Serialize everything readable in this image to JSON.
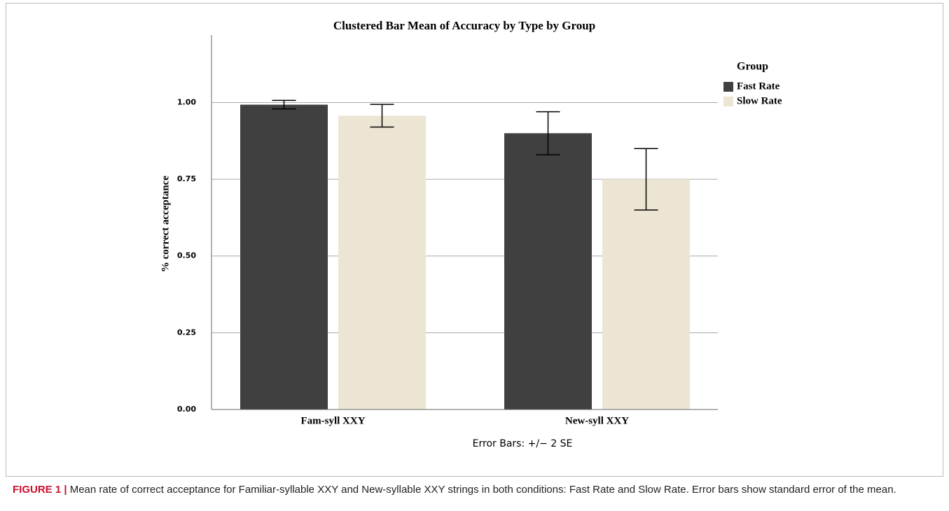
{
  "chart_data": {
    "type": "bar",
    "title": "Clustered Bar Mean of Accuracy by Type by Group",
    "y_label": "% correct acceptance",
    "categories": [
      "Fam-syll XXY",
      "New-syll XXY"
    ],
    "legend_title": "Group",
    "series": [
      {
        "name": "Fast Rate",
        "color": "#404040",
        "values": [
          0.993,
          0.9
        ],
        "errors": [
          0.014,
          0.07
        ]
      },
      {
        "name": "Slow Rate",
        "color": "#ece5d3",
        "values": [
          0.957,
          0.75
        ],
        "errors": [
          0.037,
          0.1
        ]
      }
    ],
    "ylim": [
      0,
      1.22
    ],
    "yticks": [
      {
        "value": 0,
        "label": "0.00"
      },
      {
        "value": 0.25,
        "label": "0.25"
      },
      {
        "value": 0.5,
        "label": "0.50"
      },
      {
        "value": 0.75,
        "label": "0.75"
      },
      {
        "value": 1,
        "label": "1.00"
      }
    ],
    "grid": true,
    "legend_position": "right",
    "annotation": "Error Bars: +/− 2 SE"
  },
  "caption": {
    "label": "FIGURE 1 |",
    "text": " Mean rate of correct acceptance for Familiar-syllable XXY and New-syllable XXY strings in both conditions: Fast Rate and Slow Rate. Error bars show standard error of the mean."
  }
}
